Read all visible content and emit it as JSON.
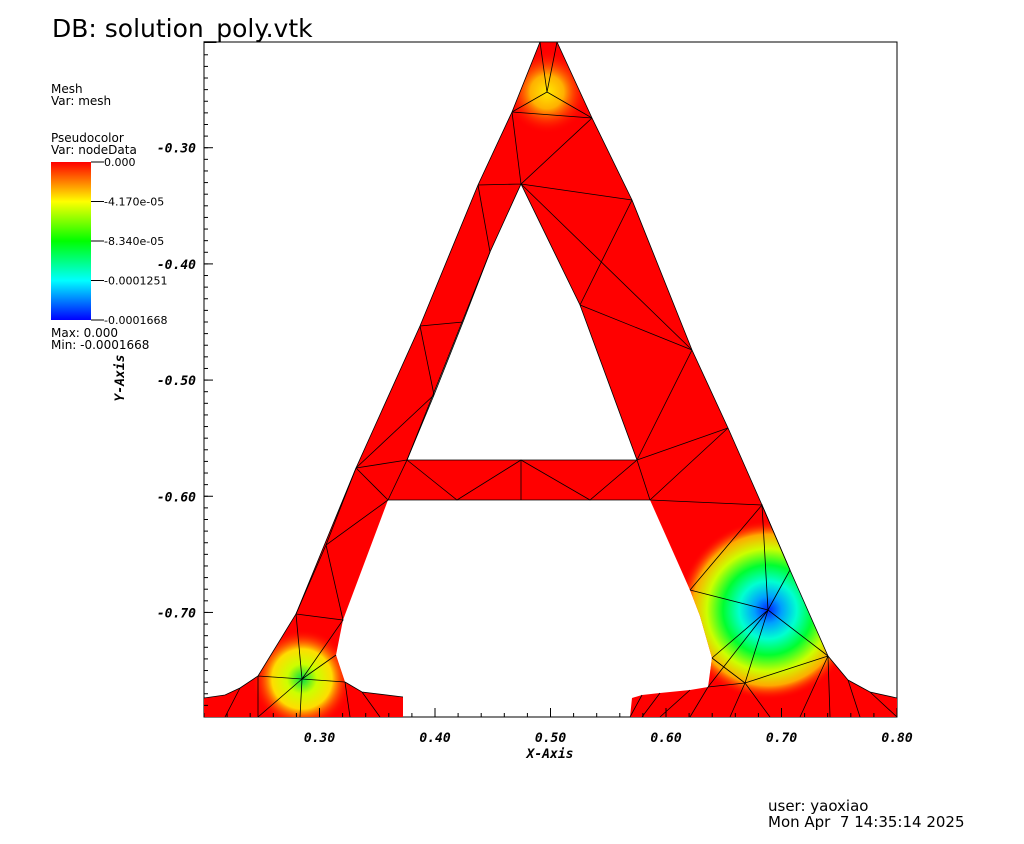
{
  "header": {
    "db_title": "DB: solution_poly.vtk"
  },
  "mesh_legend": {
    "title": "Mesh",
    "var": "Var: mesh"
  },
  "pseudocolor_legend": {
    "title": "Pseudocolor",
    "var": "Var: nodeData",
    "labels": [
      "0.000",
      "-4.170e-05",
      "-8.340e-05",
      "-0.0001251",
      "-0.0001668"
    ],
    "max": "Max:  0.000",
    "min": "Min: -0.0001668",
    "colors": [
      "#ff0000",
      "#ffff00",
      "#00ff00",
      "#00ffff",
      "#0000ff"
    ]
  },
  "footer": {
    "user": "user: yaoxiao",
    "date": "Mon Apr  7 14:35:14 2025"
  },
  "chart_data": {
    "type": "heatmap",
    "xlabel": "X-Axis",
    "ylabel": "Y-Axis",
    "xlim": [
      0.2,
      0.8
    ],
    "ylim": [
      -0.79,
      -0.209
    ],
    "x_ticks": [
      0.3,
      0.4,
      0.5,
      0.6,
      0.7,
      0.8
    ],
    "x_tick_labels": [
      "0.30",
      "0.40",
      "0.50",
      "0.60",
      "0.70",
      "0.80"
    ],
    "y_ticks": [
      -0.3,
      -0.4,
      -0.5,
      -0.6,
      -0.7
    ],
    "y_tick_labels": [
      "-0.30",
      "-0.40",
      "-0.50",
      "-0.60",
      "-0.70"
    ],
    "value_range": [
      -0.0001668,
      0.0
    ],
    "hotspots": [
      {
        "x": 0.499,
        "y": -0.233,
        "value": -4.2e-05
      },
      {
        "x": 0.286,
        "y": -0.762,
        "value": -9e-05
      },
      {
        "x": 0.688,
        "y": -0.713,
        "value": -0.0001668
      }
    ]
  }
}
